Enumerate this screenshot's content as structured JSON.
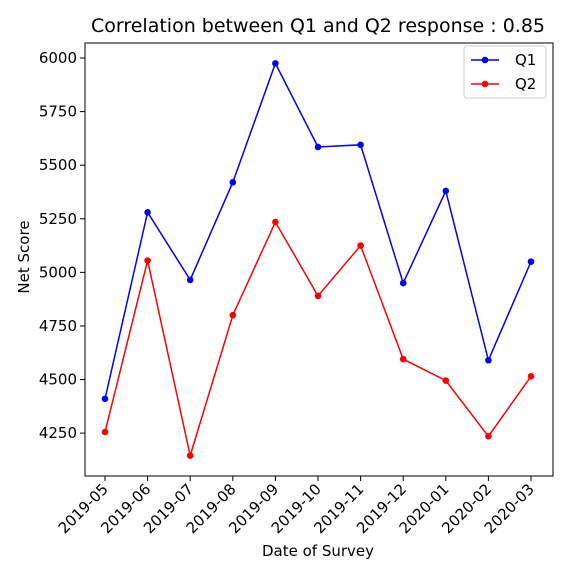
{
  "chart_data": {
    "type": "line",
    "title": "Correlation between Q1 and Q2 response : 0.85",
    "xlabel": "Date of Survey",
    "ylabel": "Net Score",
    "x": [
      "2019-05",
      "2019-06",
      "2019-07",
      "2019-08",
      "2019-09",
      "2019-10",
      "2019-11",
      "2019-12",
      "2020-01",
      "2020-02",
      "2020-03"
    ],
    "yticks": [
      4250,
      4500,
      4750,
      5000,
      5250,
      5500,
      5750,
      6000
    ],
    "ylim": [
      4050,
      6070
    ],
    "grid": false,
    "legend": "top-right",
    "series": [
      {
        "name": "Q1",
        "color": "#0000ff",
        "values": [
          4410,
          5280,
          4965,
          5420,
          5975,
          5585,
          5595,
          4950,
          5380,
          4590,
          5050
        ]
      },
      {
        "name": "Q2",
        "color": "#ff0000",
        "values": [
          4255,
          5055,
          4145,
          4800,
          5235,
          4890,
          5125,
          4595,
          4495,
          4235,
          4515
        ]
      }
    ]
  }
}
